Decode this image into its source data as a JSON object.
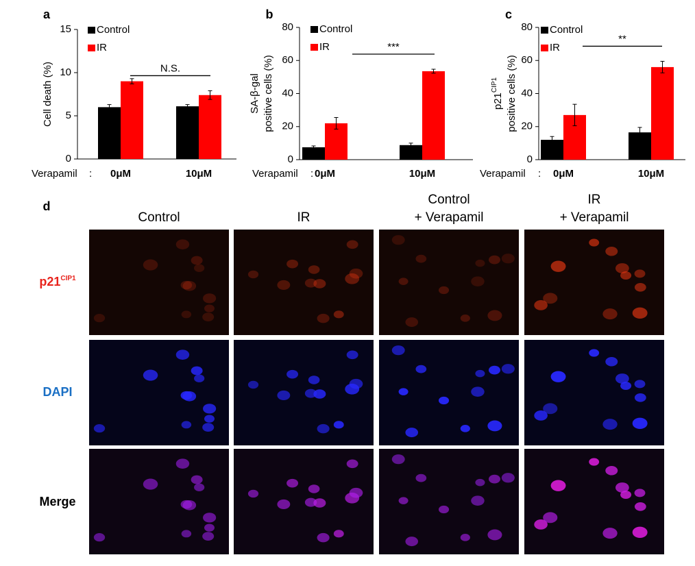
{
  "chart_data": [
    {
      "type": "bar",
      "panel": "a",
      "ylabel": [
        "Cell death (%)"
      ],
      "x_prefix": "Verapamil",
      "x_prefix_sep": ":",
      "categories": [
        "0μM",
        "10μM"
      ],
      "series": [
        {
          "name": "Control",
          "color": "#000000",
          "values": [
            6.0,
            6.1
          ],
          "errors": [
            0.3,
            0.2
          ]
        },
        {
          "name": "IR",
          "color": "#ff0000",
          "values": [
            9.0,
            7.4
          ],
          "errors": [
            0.3,
            0.5
          ]
        }
      ],
      "ylim": [
        0,
        15
      ],
      "yticks": [
        0,
        5,
        10,
        15
      ],
      "significance": "N.S."
    },
    {
      "type": "bar",
      "panel": "b",
      "ylabel": [
        "SA-β-gal",
        "positive cells (%)"
      ],
      "x_prefix": "Verapamil",
      "x_prefix_sep": ":",
      "categories": [
        "0μM",
        "10μM"
      ],
      "series": [
        {
          "name": "Control",
          "color": "#000000",
          "values": [
            7.5,
            8.8
          ],
          "errors": [
            0.8,
            1.2
          ]
        },
        {
          "name": "IR",
          "color": "#ff0000",
          "values": [
            22,
            53.5
          ],
          "errors": [
            3.5,
            1.2
          ]
        }
      ],
      "ylim": [
        0,
        80
      ],
      "yticks": [
        0,
        20,
        40,
        60,
        80
      ],
      "significance": "***"
    },
    {
      "type": "bar",
      "panel": "c",
      "ylabel": [
        {
          "text": "p21",
          "sup": "CIP1"
        },
        "positive cells (%)"
      ],
      "x_prefix": "Verapamil",
      "x_prefix_sep": ":",
      "categories": [
        "0μM",
        "10μM"
      ],
      "series": [
        {
          "name": "Control",
          "color": "#000000",
          "values": [
            12,
            16.5
          ],
          "errors": [
            2,
            3
          ]
        },
        {
          "name": "IR",
          "color": "#ff0000",
          "values": [
            27,
            56
          ],
          "errors": [
            6.5,
            3.5
          ]
        }
      ],
      "ylim": [
        0,
        80
      ],
      "yticks": [
        0,
        20,
        40,
        60,
        80
      ],
      "significance": "**"
    }
  ],
  "panel_d": {
    "panel": "d",
    "columns": [
      [
        "Control"
      ],
      [
        "IR"
      ],
      [
        "Control",
        "+ Verapamil"
      ],
      [
        "IR",
        "+ Verapamil"
      ]
    ],
    "rows": [
      {
        "text": "p21",
        "sup": "CIP1"
      },
      {
        "text": "DAPI"
      },
      {
        "text": "Merge"
      }
    ]
  }
}
